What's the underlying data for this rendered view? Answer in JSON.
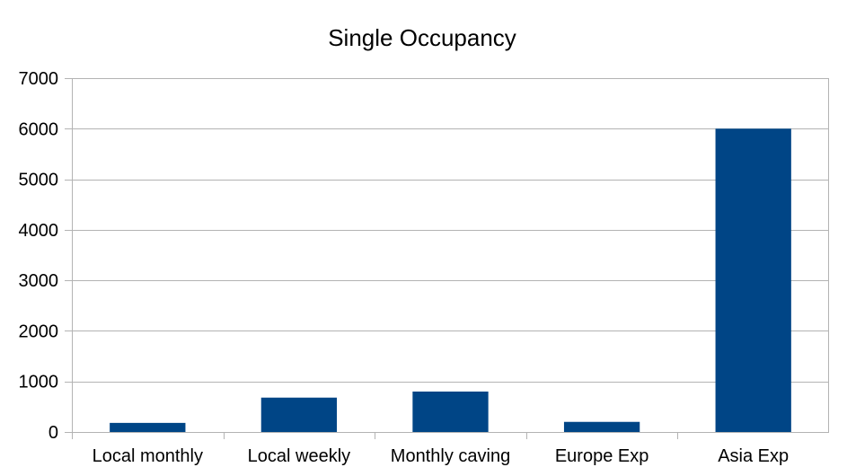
{
  "chart_data": {
    "type": "bar",
    "title": "Single Occupancy",
    "xlabel": "",
    "ylabel": "",
    "categories": [
      "Local monthly",
      "Local weekly",
      "Monthly caving",
      "Europe Exp",
      "Asia Exp"
    ],
    "values": [
      180,
      680,
      800,
      200,
      6000
    ],
    "ylim": [
      0,
      7000
    ],
    "yticks": [
      0,
      1000,
      2000,
      3000,
      4000,
      5000,
      6000,
      7000
    ],
    "grid": true,
    "legend": "none",
    "colors": {
      "bar": "#004586",
      "grid": "#b3b3b3",
      "axis": "#b3b3b3",
      "text": "#000000",
      "background": "#ffffff"
    }
  }
}
